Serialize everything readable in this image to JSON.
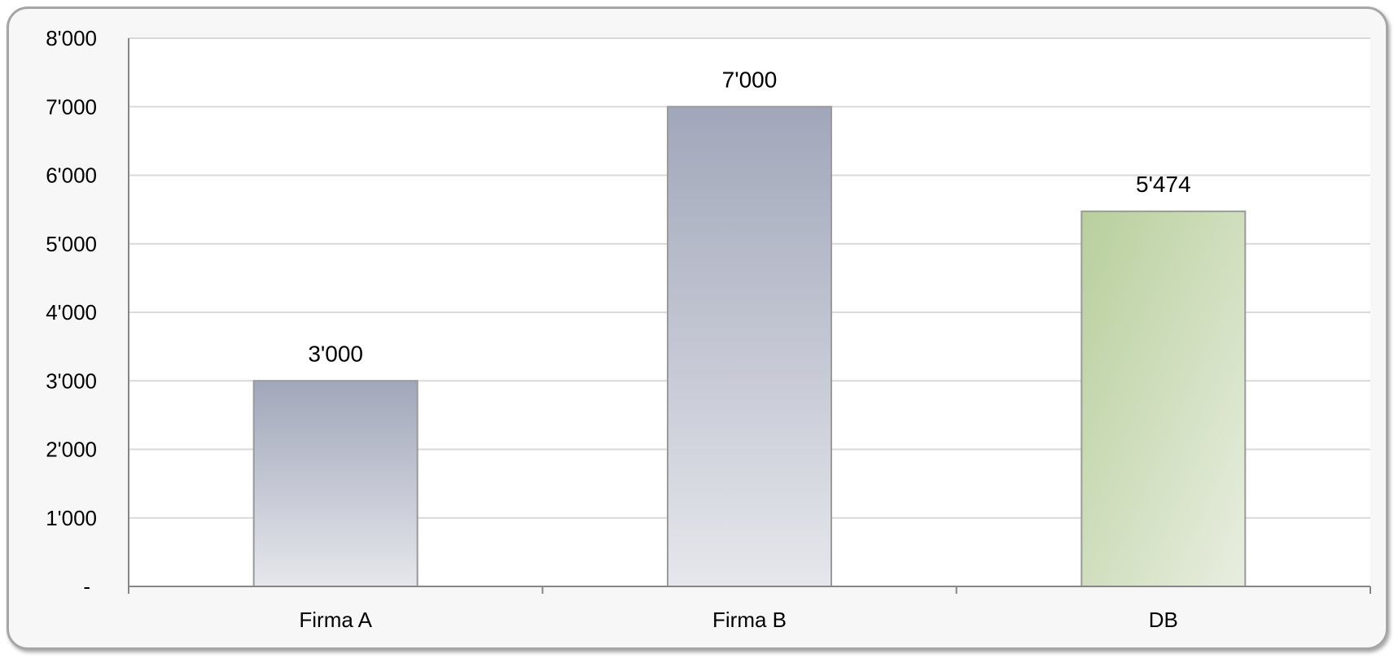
{
  "chart_data": {
    "type": "bar",
    "title": "",
    "xlabel": "",
    "ylabel": "",
    "categories": [
      "Firma A",
      "Firma B",
      "DB"
    ],
    "values": [
      3000,
      7000,
      5474
    ],
    "data_labels": [
      "3'000",
      "7'000",
      "5'474"
    ],
    "ylim": [
      0,
      8000
    ],
    "yticks": [
      0,
      1000,
      2000,
      3000,
      4000,
      5000,
      6000,
      7000,
      8000
    ],
    "ytick_labels": [
      "-",
      "1'000",
      "2'000",
      "3'000",
      "4'000",
      "5'000",
      "6'000",
      "7'000",
      "8'000"
    ],
    "grid": true,
    "legend": "none",
    "bar_colors": [
      {
        "top": "#a1a7ba",
        "bottom": "#e6e7ec"
      },
      {
        "top": "#a1a7ba",
        "bottom": "#e6e7ec"
      },
      {
        "top": "#b8cf9c",
        "bottom": "#e8eee0"
      }
    ],
    "gridline_color": "#d9d9d9",
    "axis_color": "#868686"
  }
}
